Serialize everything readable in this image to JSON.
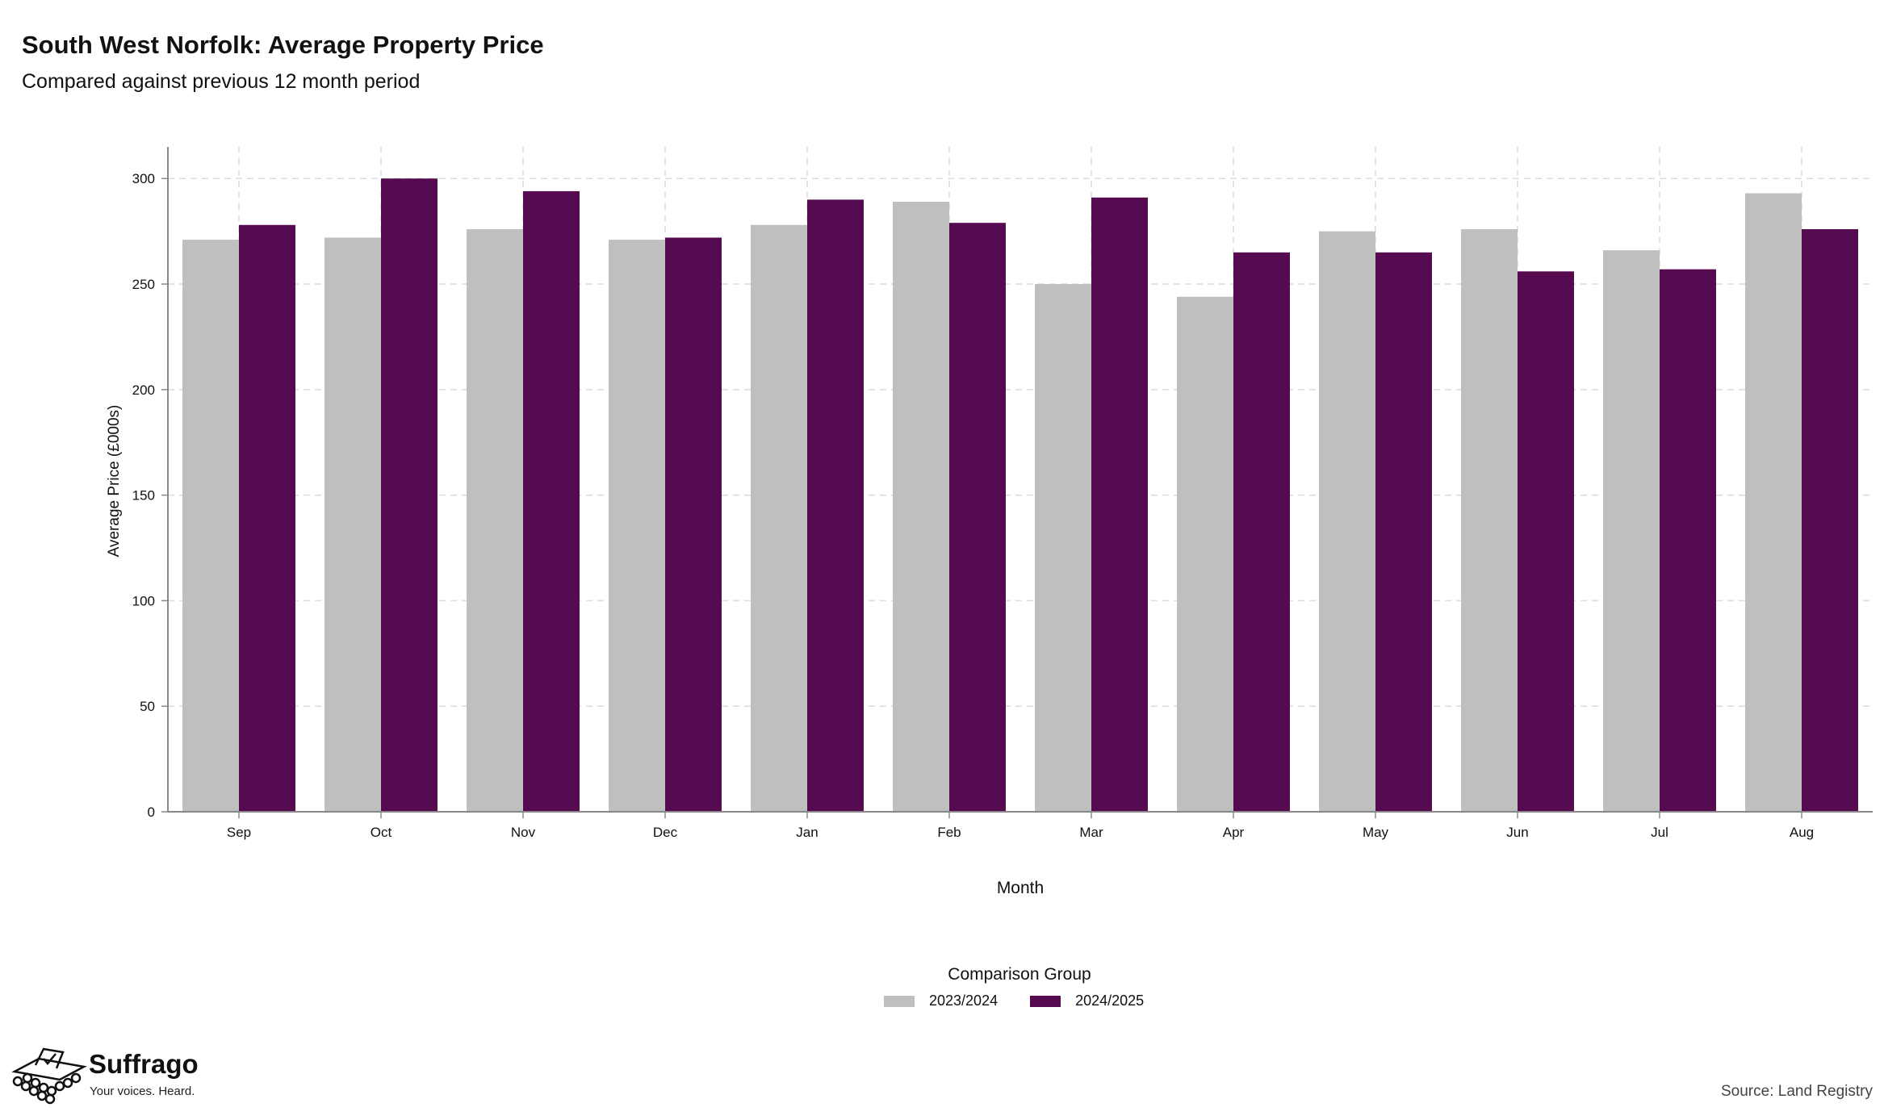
{
  "title": "South West Norfolk: Average Property Price",
  "subtitle": "Compared against previous 12 month period",
  "legend": {
    "title": "Comparison Group",
    "items": [
      {
        "label": "2023/2024",
        "color": "#bfbfbf"
      },
      {
        "label": "2024/2025",
        "color": "#560b50"
      }
    ]
  },
  "logo": {
    "name": "Suffrago",
    "tagline": "Your voices. Heard."
  },
  "source": "Source: Land Registry",
  "chart_data": {
    "type": "bar",
    "xlabel": "Month",
    "ylabel": "Average Price (£000s)",
    "ylim": [
      0,
      315
    ],
    "yticks": [
      0,
      50,
      100,
      150,
      200,
      250,
      300
    ],
    "grid": true,
    "legend_position": "bottom",
    "categories": [
      "Sep",
      "Oct",
      "Nov",
      "Dec",
      "Jan",
      "Feb",
      "Mar",
      "Apr",
      "May",
      "Jun",
      "Jul",
      "Aug"
    ],
    "series": [
      {
        "name": "2023/2024",
        "color": "#bfbfbf",
        "values": [
          271,
          272,
          276,
          271,
          278,
          289,
          250,
          244,
          275,
          276,
          266,
          293
        ]
      },
      {
        "name": "2024/2025",
        "color": "#560b50",
        "values": [
          278,
          300,
          294,
          272,
          290,
          279,
          291,
          265,
          265,
          256,
          257,
          276
        ]
      }
    ]
  }
}
